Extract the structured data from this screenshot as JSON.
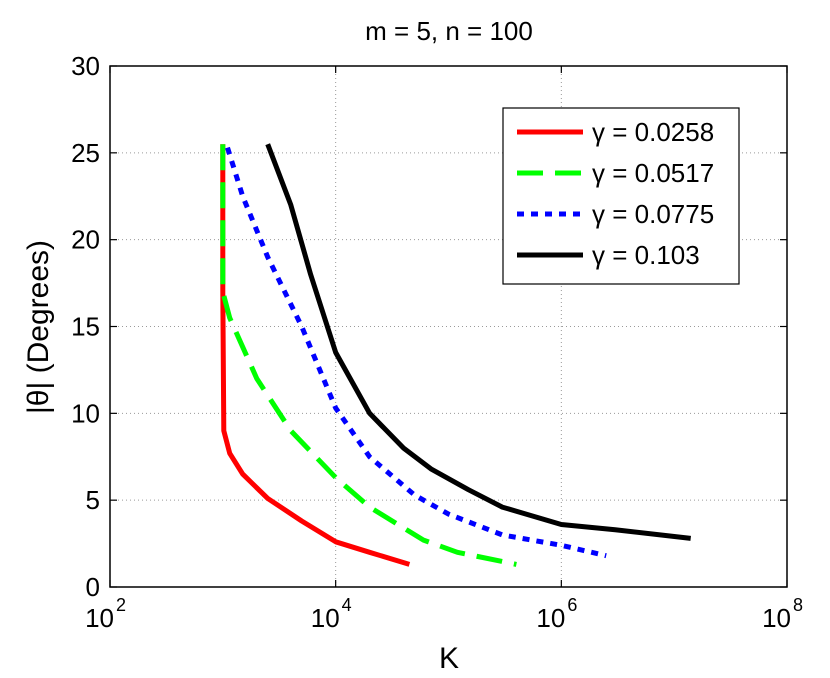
{
  "chart_data": {
    "type": "line",
    "title": "m = 5, n = 100",
    "xlabel": "K",
    "ylabel": "|θ| (Degrees)",
    "xscale": "log",
    "xlim": [
      100,
      100000000
    ],
    "ylim": [
      0,
      30
    ],
    "xticks": [
      {
        "base": "10",
        "exp": "2",
        "value": 100
      },
      {
        "base": "10",
        "exp": "4",
        "value": 10000
      },
      {
        "base": "10",
        "exp": "6",
        "value": 1000000
      },
      {
        "base": "10",
        "exp": "8",
        "value": 100000000
      }
    ],
    "yticks": [
      "0",
      "5",
      "10",
      "15",
      "20",
      "25",
      "30"
    ],
    "grid": true,
    "legend_position": "top-right",
    "series": [
      {
        "name": "γ = 0.0258",
        "color": "#ff0000",
        "dash": "solid",
        "points": [
          [
            1000,
            25.5
          ],
          [
            1000,
            17
          ],
          [
            1020,
            9
          ],
          [
            1150,
            7.7
          ],
          [
            1500,
            6.5
          ],
          [
            2500,
            5.1
          ],
          [
            5000,
            3.8
          ],
          [
            10000,
            2.6
          ],
          [
            20000,
            2.0
          ],
          [
            45000,
            1.3
          ]
        ]
      },
      {
        "name": "γ = 0.0517",
        "color": "#00ff00",
        "dash": "dashed",
        "points": [
          [
            1000,
            25.5
          ],
          [
            1000,
            17
          ],
          [
            1150,
            15.5
          ],
          [
            2000,
            12.0
          ],
          [
            4000,
            9.0
          ],
          [
            10000,
            6.3
          ],
          [
            20000,
            4.6
          ],
          [
            60000,
            2.7
          ],
          [
            120000,
            2.0
          ],
          [
            400000,
            1.3
          ]
        ]
      },
      {
        "name": "γ = 0.0775",
        "color": "#0000ff",
        "dash": "dotted",
        "points": [
          [
            1100,
            25.3
          ],
          [
            1500,
            22.5
          ],
          [
            2500,
            19.0
          ],
          [
            5000,
            15.0
          ],
          [
            10000,
            10.3
          ],
          [
            20000,
            7.5
          ],
          [
            50000,
            5.3
          ],
          [
            100000,
            4.2
          ],
          [
            300000,
            3.0
          ],
          [
            1000000,
            2.4
          ],
          [
            2500000,
            1.8
          ]
        ]
      },
      {
        "name": "γ = 0.103",
        "color": "#000000",
        "dash": "solid",
        "points": [
          [
            2500,
            25.5
          ],
          [
            4000,
            22.0
          ],
          [
            6000,
            18.0
          ],
          [
            10000,
            13.5
          ],
          [
            20000,
            10.0
          ],
          [
            40000,
            8.0
          ],
          [
            70000,
            6.8
          ],
          [
            150000,
            5.6
          ],
          [
            300000,
            4.6
          ],
          [
            1000000,
            3.6
          ],
          [
            3000000,
            3.3
          ],
          [
            14000000,
            2.8
          ]
        ]
      }
    ]
  }
}
